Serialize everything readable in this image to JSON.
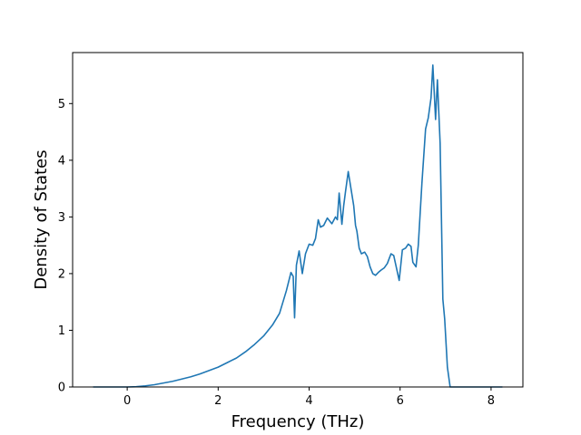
{
  "chart_data": {
    "type": "line",
    "title": "",
    "xlabel": "Frequency (THz)",
    "ylabel": "Density of States",
    "xlim": [
      -1.2,
      8.7
    ],
    "ylim": [
      0,
      5.9
    ],
    "xticks": [
      0,
      2,
      4,
      6,
      8
    ],
    "yticks": [
      0,
      1,
      2,
      3,
      4,
      5
    ],
    "grid": false,
    "legend": "none",
    "series": [
      {
        "color": "#1f77b4",
        "x": [
          -0.75,
          -0.5,
          0,
          0.2,
          0.4,
          0.6,
          0.8,
          1.0,
          1.2,
          1.4,
          1.6,
          1.8,
          2.0,
          2.2,
          2.4,
          2.6,
          2.8,
          3.0,
          3.2,
          3.35,
          3.5,
          3.6,
          3.65,
          3.68,
          3.72,
          3.78,
          3.85,
          3.92,
          4.0,
          4.08,
          4.14,
          4.2,
          4.25,
          4.32,
          4.4,
          4.5,
          4.58,
          4.62,
          4.66,
          4.72,
          4.76,
          4.8,
          4.86,
          4.92,
          4.98,
          5.02,
          5.05,
          5.1,
          5.15,
          5.22,
          5.28,
          5.34,
          5.4,
          5.46,
          5.52,
          5.58,
          5.65,
          5.72,
          5.8,
          5.86,
          5.92,
          5.98,
          6.05,
          6.12,
          6.18,
          6.24,
          6.28,
          6.35,
          6.4,
          6.48,
          6.56,
          6.62,
          6.68,
          6.72,
          6.78,
          6.82,
          6.88,
          6.94,
          6.98,
          7.04,
          7.1,
          7.16,
          7.22,
          7.26,
          7.3,
          7.35,
          7.4,
          7.45,
          7.5,
          7.55,
          7.6,
          7.8,
          8.0,
          8.25
        ],
        "y": [
          0,
          0,
          0,
          0.005,
          0.02,
          0.04,
          0.07,
          0.1,
          0.14,
          0.18,
          0.23,
          0.29,
          0.35,
          0.43,
          0.51,
          0.62,
          0.75,
          0.9,
          1.1,
          1.3,
          1.7,
          2.02,
          1.95,
          1.22,
          2.15,
          2.4,
          2.0,
          2.35,
          2.52,
          2.5,
          2.62,
          2.95,
          2.82,
          2.85,
          2.98,
          2.88,
          3.0,
          2.95,
          3.42,
          2.87,
          3.2,
          3.45,
          3.8,
          3.5,
          3.2,
          2.85,
          2.75,
          2.45,
          2.35,
          2.38,
          2.3,
          2.12,
          2.0,
          1.97,
          2.02,
          2.06,
          2.1,
          2.18,
          2.35,
          2.32,
          2.1,
          1.88,
          2.42,
          2.45,
          2.52,
          2.48,
          2.2,
          2.12,
          2.5,
          3.6,
          4.55,
          4.75,
          5.1,
          5.68,
          4.72,
          5.42,
          4.3,
          1.55,
          1.2,
          0.35,
          0,
          0,
          0,
          0,
          0,
          0,
          0,
          0,
          0,
          0,
          0,
          0,
          0,
          0
        ]
      }
    ]
  }
}
